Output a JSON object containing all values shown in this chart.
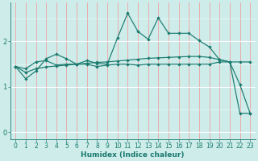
{
  "xlabel": "Humidex (Indice chaleur)",
  "x_ticks": [
    0,
    1,
    2,
    3,
    4,
    5,
    6,
    7,
    8,
    9,
    10,
    11,
    12,
    13,
    14,
    15,
    16,
    17,
    18,
    19,
    20,
    21,
    22,
    23
  ],
  "y_ticks": [
    0,
    1,
    2
  ],
  "ylim": [
    -0.15,
    2.85
  ],
  "xlim": [
    -0.5,
    23.5
  ],
  "bg_color": "#ceecea",
  "line_color": "#1a7a6e",
  "red_vline_color": "#f0a0a0",
  "white_hline_color": "#e8f8f7",
  "line1_x": [
    0,
    1,
    2,
    3,
    4,
    5,
    6,
    7,
    8,
    9,
    10,
    11,
    12,
    13,
    14,
    15,
    16,
    17,
    18,
    19,
    20,
    21,
    22,
    23
  ],
  "line1_y": [
    1.45,
    1.18,
    1.35,
    1.62,
    1.72,
    1.62,
    1.5,
    1.58,
    1.52,
    1.5,
    2.08,
    2.62,
    2.22,
    2.05,
    2.52,
    2.18,
    2.18,
    2.18,
    2.02,
    1.88,
    1.6,
    1.55,
    1.05,
    0.42
  ],
  "line2_x": [
    0,
    1,
    2,
    3,
    4,
    5,
    6,
    7,
    8,
    9,
    10,
    11,
    12,
    13,
    14,
    15,
    16,
    17,
    18,
    19,
    20,
    21,
    22,
    23
  ],
  "line2_y": [
    1.45,
    1.32,
    1.4,
    1.44,
    1.46,
    1.48,
    1.5,
    1.52,
    1.54,
    1.55,
    1.57,
    1.59,
    1.61,
    1.63,
    1.64,
    1.65,
    1.66,
    1.67,
    1.67,
    1.65,
    1.6,
    1.55,
    1.55,
    1.55
  ],
  "line3_x": [
    0,
    1,
    2,
    3,
    4,
    5,
    6,
    7,
    8,
    9,
    10,
    11,
    12,
    13,
    14,
    15,
    16,
    17,
    18,
    19,
    20,
    21,
    22,
    23
  ],
  "line3_y": [
    1.45,
    1.4,
    1.55,
    1.58,
    1.48,
    1.5,
    1.5,
    1.5,
    1.45,
    1.48,
    1.5,
    1.5,
    1.48,
    1.5,
    1.5,
    1.5,
    1.5,
    1.5,
    1.5,
    1.5,
    1.55,
    1.55,
    0.42,
    0.42
  ],
  "marker": "D",
  "markersize": 2.2,
  "linewidth": 0.85,
  "tick_fontsize": 5.5,
  "xlabel_fontsize": 6.5
}
